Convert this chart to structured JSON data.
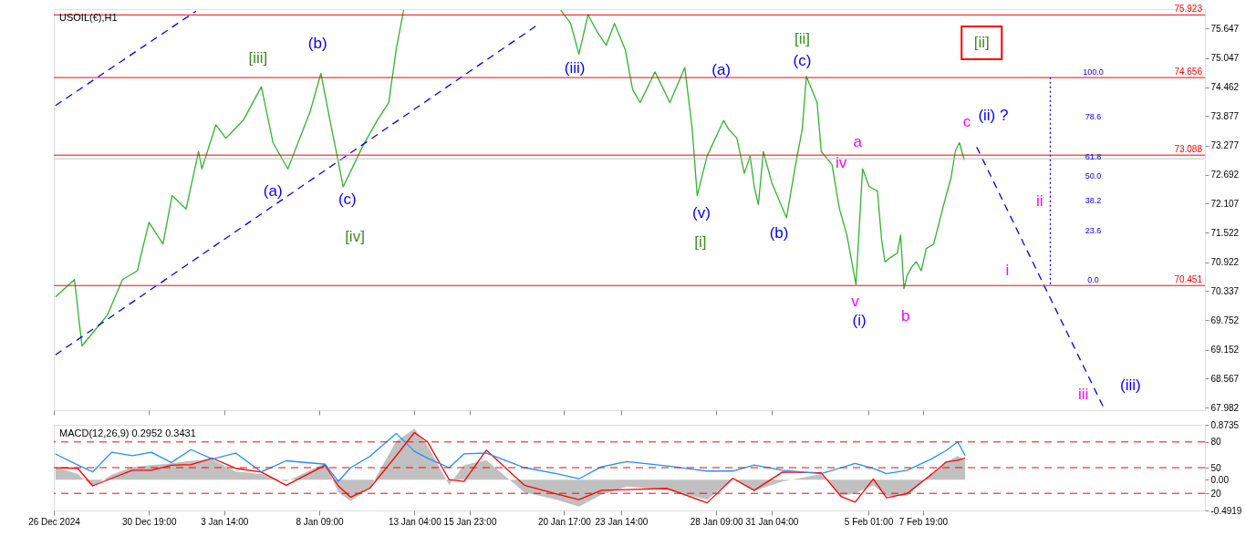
{
  "chart_data": [
    {
      "type": "line",
      "title": "USOIL(€),H1",
      "tick_labels": "y",
      "grid": false,
      "xlim": [
        "2024-12-26T00:00",
        "2025-02-22T00:00"
      ],
      "xticks": [
        {
          "value": "2024-12-26T00:00",
          "label": null
        },
        {
          "value": "2024-12-30T19:00",
          "label": null
        },
        {
          "value": "2025-01-03T14:00",
          "label": null
        },
        {
          "value": "2025-01-08T09:00",
          "label": null
        },
        {
          "value": "2025-01-13T04:00",
          "label": null
        },
        {
          "value": "2025-01-15T23:00",
          "label": null
        },
        {
          "value": "2025-01-20T17:00",
          "label": null
        },
        {
          "value": "2025-01-23T14:00",
          "label": null
        },
        {
          "value": "2025-01-28T09:00",
          "label": null
        },
        {
          "value": "2025-01-31T04:00",
          "label": null
        },
        {
          "value": "2025-02-05T01:00",
          "label": null
        },
        {
          "value": "2025-02-07T19:00",
          "label": null
        }
      ],
      "ylim": [
        67.93,
        76.04
      ],
      "yticks": [
        75.647,
        75.047,
        74.462,
        73.877,
        73.277,
        72.692,
        72.107,
        71.522,
        70.922,
        70.337,
        69.752,
        69.152,
        68.567,
        67.982
      ],
      "series": [
        {
          "color": "#2fb52f",
          "line_style": "solid",
          "x": [
            "2024-12-26T02:00",
            "2024-12-27T01:00",
            "2024-12-27T10:00",
            "2024-12-28T17:00",
            "2024-12-29T11:00",
            "2024-12-30T05:00",
            "2024-12-30T19:00",
            "2024-12-31T12:00",
            "2024-12-31T23:00",
            "2025-01-01T16:00",
            "2025-01-02T07:00",
            "2025-01-02T11:00",
            "2025-01-03T04:00",
            "2025-01-03T16:00",
            "2025-01-04T13:00",
            "2025-01-05T11:00",
            "2025-01-06T01:00",
            "2025-01-06T19:00",
            "2025-01-07T22:00",
            "2025-01-08T11:00",
            "2025-01-08T22:00",
            "2025-01-09T14:00",
            "2025-01-10T13:00",
            "2025-01-11T07:00",
            "2025-01-11T21:00",
            "2025-01-12T06:00",
            "2025-01-12T15:00",
            "2025-01-14T22:00",
            "2025-01-20T13:00",
            "2025-01-21T01:00",
            "2025-01-21T11:00",
            "2025-01-21T22:00",
            "2025-01-22T09:00",
            "2025-01-22T20:00",
            "2025-01-23T06:00",
            "2025-01-23T19:00",
            "2025-01-24T04:00",
            "2025-01-24T13:00",
            "2025-01-25T07:00",
            "2025-01-26T01:00",
            "2025-01-26T19:00",
            "2025-01-27T04:00",
            "2025-01-27T10:00",
            "2025-01-27T22:00",
            "2025-01-28T13:00",
            "2025-01-28T18:00",
            "2025-01-29T00:00",
            "2025-01-29T10:00",
            "2025-01-29T19:00",
            "2025-01-30T02:00",
            "2025-01-30T07:00",
            "2025-01-30T12:00",
            "2025-01-30T18:00",
            "2025-01-31T04:00",
            "2025-01-31T22:00",
            "2025-02-01T09:00",
            "2025-02-01T17:00",
            "2025-02-01T22:00",
            "2025-02-02T11:00",
            "2025-02-02T16:00",
            "2025-02-03T05:00",
            "2025-02-03T14:00",
            "2025-02-03T23:00",
            "2025-02-04T10:00",
            "2025-02-04T18:00",
            "2025-02-05T02:00",
            "2025-02-05T12:00",
            "2025-02-05T17:00",
            "2025-02-05T21:00",
            "2025-02-06T04:00",
            "2025-02-06T12:00",
            "2025-02-06T16:00",
            "2025-02-06T20:00",
            "2025-02-07T00:00",
            "2025-02-07T06:00",
            "2025-02-07T11:00",
            "2025-02-07T17:00",
            "2025-02-07T23:00",
            "2025-02-08T08:00",
            "2025-02-08T16:00",
            "2025-02-08T23:00",
            "2025-02-09T05:00",
            "2025-02-09T10:00",
            "2025-02-09T15:00",
            "2025-02-09T21:00"
          ],
          "values": [
            70.22,
            70.57,
            69.23,
            69.86,
            70.57,
            70.75,
            71.73,
            71.29,
            72.27,
            72.0,
            73.16,
            72.81,
            73.7,
            73.43,
            73.79,
            74.47,
            73.34,
            72.81,
            73.97,
            74.74,
            73.79,
            72.45,
            73.25,
            73.79,
            74.15,
            75.22,
            76.02,
            null,
            76.02,
            75.75,
            75.13,
            75.93,
            75.58,
            75.31,
            75.75,
            75.22,
            74.41,
            74.15,
            74.77,
            74.15,
            74.86,
            73.61,
            72.27,
            73.07,
            73.61,
            73.79,
            73.61,
            73.43,
            72.72,
            73.07,
            72.45,
            72.09,
            73.16,
            72.54,
            71.82,
            72.9,
            73.61,
            74.68,
            74.15,
            73.16,
            72.9,
            72.0,
            71.47,
            70.47,
            72.81,
            72.45,
            72.36,
            71.38,
            70.93,
            71.02,
            71.11,
            71.47,
            70.39,
            70.66,
            70.84,
            70.93,
            70.75,
            71.2,
            71.29,
            71.82,
            72.27,
            72.63,
            73.16,
            73.34,
            72.99
          ]
        },
        {
          "color": "#0000ff",
          "line_style": "dashed",
          "x": [
            "2024-12-26T02:00",
            "2025-01-19T09:00"
          ],
          "values": [
            69.05,
            75.72
          ]
        },
        {
          "color": "#0000ff",
          "line_style": "dashed",
          "x": [
            "2024-12-26T02:00",
            "2025-01-02T04:00"
          ],
          "values": [
            74.09,
            76.0
          ]
        },
        {
          "color": "#0000ff",
          "line_style": "dashed",
          "x": [
            "2025-02-10T12:00",
            "2025-02-16T23:00"
          ],
          "values": [
            73.25,
            67.93
          ]
        },
        {
          "color": "#0000ff",
          "line_style": "dotted",
          "x": [
            "2025-02-14T05:00",
            "2025-02-14T05:00"
          ],
          "values": [
            74.66,
            70.45
          ]
        }
      ],
      "ref_lines": [
        {
          "axis": "y",
          "value": 75.923,
          "label": "75.923",
          "color": "#ff0000"
        },
        {
          "axis": "y",
          "value": 74.656,
          "label": "74.656",
          "color": "#ff0000"
        },
        {
          "axis": "y",
          "value": 73.088,
          "label": "73.088",
          "color": "#ff0000"
        },
        {
          "axis": "y",
          "value": 73.015,
          "color": "#c0c0c0"
        },
        {
          "axis": "y",
          "value": 70.451,
          "label": "70.451",
          "color": "#ff0000"
        }
      ],
      "annotations": [
        "[iii]",
        "(b)",
        "(a)",
        "(c)",
        "[iv]",
        "(iii)",
        "(a)",
        "[ii]",
        "(c)",
        "(v)",
        "[i]",
        "(b)",
        "a",
        "iv",
        "v",
        "(i)",
        "b",
        "c",
        "(ii) ?",
        "[ii]",
        "ii",
        "i",
        "iii",
        "(iii)",
        "100.0",
        "78.6",
        "61.8",
        "50.0",
        "38.2",
        "23.6",
        "0.0"
      ]
    },
    {
      "type": "area",
      "title": "MACD(12,26,9) 0.2952 0.3431",
      "grid": false,
      "xlim": [
        "2024-12-26T00:00",
        "2025-02-22T00:00"
      ],
      "xticks": [
        {
          "value": "2024-12-26T00:00",
          "label": "26 Dec 2024"
        },
        {
          "value": "2024-12-30T19:00",
          "label": "30 Dec 19:00"
        },
        {
          "value": "2025-01-03T14:00",
          "label": "3 Jan 14:00"
        },
        {
          "value": "2025-01-08T09:00",
          "label": "8 Jan 09:00"
        },
        {
          "value": "2025-01-13T04:00",
          "label": "13 Jan 04:00"
        },
        {
          "value": "2025-01-15T23:00",
          "label": "15 Jan 23:00"
        },
        {
          "value": "2025-01-20T17:00",
          "label": "20 Jan 17:00"
        },
        {
          "value": "2025-01-23T14:00",
          "label": "23 Jan 14:00"
        },
        {
          "value": "2025-01-28T09:00",
          "label": "28 Jan 09:00"
        },
        {
          "value": "2025-01-31T04:00",
          "label": "31 Jan 04:00"
        },
        {
          "value": "2025-02-05T01:00",
          "label": "5 Feb 01:00"
        },
        {
          "value": "2025-02-07T19:00",
          "label": "7 Feb 19:00"
        }
      ],
      "ylim": [
        -0.4919,
        0.8735
      ],
      "yticks": [
        0.8735,
        {
          "value": 0,
          "label": "0.00"
        },
        -0.4919
      ],
      "y2lim": [
        0,
        100
      ],
      "y2ticks": [
        80,
        50,
        20
      ],
      "x": [
        "2024-12-26T02:00",
        "2024-12-27T05:00",
        "2024-12-27T23:00",
        "2024-12-28T22:00",
        "2024-12-29T23:00",
        "2024-12-30T22:00",
        "2024-12-31T22:00",
        "2025-01-01T22:00",
        "2025-01-03T00:00",
        "2025-01-04T04:00",
        "2025-01-05T11:00",
        "2025-01-06T17:00",
        "2025-01-08T16:00",
        "2025-01-09T08:00",
        "2025-01-09T23:00",
        "2025-01-10T22:00",
        "2025-01-12T06:00",
        "2025-01-13T04:00",
        "2025-01-13T20:00",
        "2025-01-14T22:00",
        "2025-01-15T16:00",
        "2025-01-16T19:00",
        "2025-01-18T17:00",
        "2025-01-20T08:00",
        "2025-01-21T11:00",
        "2025-01-22T14:00",
        "2025-01-23T21:00",
        "2025-01-25T22:00",
        "2025-01-27T22:00",
        "2025-01-29T05:00",
        "2025-01-30T07:00",
        "2025-01-31T17:00",
        "2025-02-02T16:00",
        "2025-02-03T16:00",
        "2025-02-04T09:00",
        "2025-02-05T07:00",
        "2025-02-05T23:00",
        "2025-02-07T00:00",
        "2025-02-08T05:00",
        "2025-02-08T23:00",
        "2025-02-09T13:00",
        "2025-02-09T22:00"
      ],
      "series": [
        {
          "type": "area",
          "color": "#c0c0c0",
          "values": [
            0.2,
            0.09,
            -0.11,
            0.08,
            0.2,
            0.23,
            0.26,
            0.3,
            0.32,
            0.13,
            0.09,
            -0.03,
            0.26,
            -0.2,
            -0.34,
            -0.14,
            0.61,
            0.81,
            0.54,
            -0.09,
            0.23,
            0.31,
            -0.2,
            -0.32,
            -0.43,
            -0.24,
            -0.11,
            -0.17,
            -0.32,
            0.01,
            -0.18,
            -0.03,
            0.09,
            -0.26,
            -0.22,
            -0.09,
            -0.26,
            -0.26,
            0.09,
            0.27,
            0.38,
            0.3
          ]
        },
        {
          "type": "line",
          "color": "#ff0000",
          "line_style": "solid",
          "values": [
            0.19,
            0.18,
            -0.1,
            0.02,
            0.15,
            0.15,
            0.23,
            0.24,
            0.34,
            0.18,
            0.12,
            -0.09,
            0.23,
            -0.1,
            -0.28,
            -0.14,
            0.38,
            0.75,
            0.6,
            0.0,
            -0.03,
            0.47,
            -0.09,
            -0.23,
            -0.32,
            -0.17,
            -0.16,
            -0.14,
            -0.37,
            0.02,
            -0.17,
            0.12,
            0.11,
            -0.27,
            -0.36,
            0.01,
            -0.29,
            -0.22,
            0.08,
            0.28,
            0.31,
            0.34
          ]
        },
        {
          "type": "line",
          "color": "#1e90ff",
          "line_style": "solid",
          "axis": "y2",
          "values": [
            66,
            53,
            45,
            68,
            64,
            68,
            56,
            71,
            60,
            67,
            45,
            58,
            54,
            34,
            50,
            63,
            90,
            69,
            61,
            50,
            66,
            67,
            50,
            43,
            37,
            51,
            57,
            52,
            46,
            46,
            53,
            47,
            43,
            50,
            55,
            49,
            43,
            47,
            60,
            70,
            80,
            64
          ]
        }
      ],
      "ref_lines": [
        {
          "axis": "y2",
          "value": 80,
          "color": "#ff0000",
          "line_style": "dashed"
        },
        {
          "axis": "y2",
          "value": 50,
          "color": "#ff0000",
          "line_style": "dashed"
        },
        {
          "axis": "y2",
          "value": 20,
          "color": "#ff0000",
          "line_style": "dashed"
        }
      ]
    }
  ]
}
